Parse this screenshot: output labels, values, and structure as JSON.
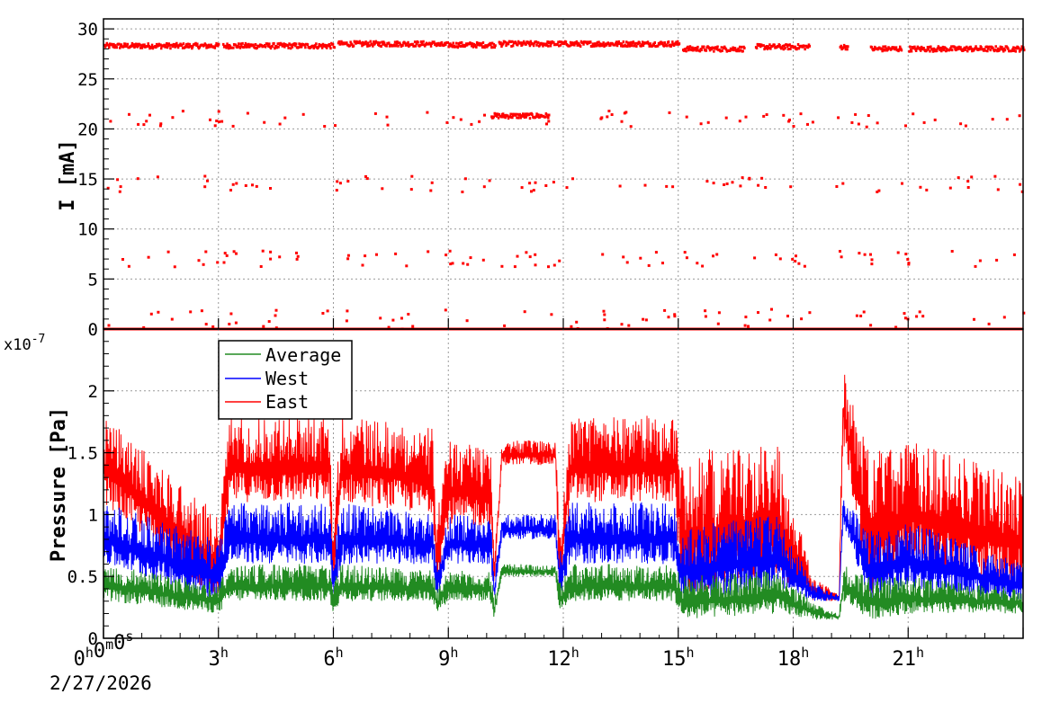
{
  "colors": {
    "current": "#ff0000",
    "average": "#228b22",
    "west": "#0000ff",
    "east": "#ff0000",
    "axes": "#000000",
    "grid": "#9a9a9a"
  },
  "chart_data": [
    {
      "type": "scatter",
      "ylabel": "I [mA]",
      "ylim": [
        0,
        31
      ],
      "yticks": [
        0,
        5,
        10,
        15,
        20,
        25,
        30
      ],
      "xlim_hours": [
        0,
        24
      ],
      "grid": true,
      "current_levels": [
        0,
        7,
        14.5,
        21,
        28.3
      ],
      "series": [
        {
          "color": "#ff0000",
          "segments": [
            {
              "start_h": 0.0,
              "end_h": 3.0,
              "level": 28.3
            },
            {
              "start_h": 3.1,
              "end_h": 6.0,
              "level": 28.3
            },
            {
              "start_h": 6.1,
              "end_h": 8.7,
              "level": 28.5
            },
            {
              "start_h": 8.7,
              "end_h": 10.2,
              "level": 28.4
            },
            {
              "start_h": 10.1,
              "end_h": 11.6,
              "level": 21.3
            },
            {
              "start_h": 10.3,
              "end_h": 15.0,
              "level": 28.5
            },
            {
              "start_h": 15.1,
              "end_h": 16.7,
              "level": 28.0
            },
            {
              "start_h": 17.0,
              "end_h": 18.4,
              "level": 28.2
            },
            {
              "start_h": 19.2,
              "end_h": 19.4,
              "level": 28.2
            },
            {
              "start_h": 20.0,
              "end_h": 20.8,
              "level": 28.0
            },
            {
              "start_h": 21.0,
              "end_h": 24.0,
              "level": 28.0
            }
          ],
          "baseline": 0
        }
      ]
    },
    {
      "type": "line",
      "ylabel": "Pressure [Pa]",
      "y_multiplier": "x10",
      "y_multiplier_exp": "-7",
      "ylim": [
        0,
        2.5
      ],
      "yticks": [
        0,
        0.5,
        1,
        1.5,
        2
      ],
      "ytick_labels": [
        "0",
        "0.5",
        "1",
        "1.5",
        "2"
      ],
      "xlim_hours": [
        0,
        24
      ],
      "xticks_hours": [
        0,
        3,
        6,
        9,
        12,
        15,
        18,
        21
      ],
      "xtick_labels": [
        {
          "main": "0",
          "parts": [
            [
              "0",
              "h"
            ],
            [
              "0",
              "m"
            ],
            [
              "0",
              "s"
            ]
          ]
        },
        {
          "main": "3",
          "sup": "h"
        },
        {
          "main": "6",
          "sup": "h"
        },
        {
          "main": "9",
          "sup": "h"
        },
        {
          "main": "12",
          "sup": "h"
        },
        {
          "main": "15",
          "sup": "h"
        },
        {
          "main": "18",
          "sup": "h"
        },
        {
          "main": "21",
          "sup": "h"
        }
      ],
      "date_label": "2/27/2026",
      "grid": true,
      "legend_placement": "top-left",
      "series": [
        {
          "name": "Average",
          "color": "#228b22",
          "profile": [
            [
              0.0,
              0.3,
              0.6
            ],
            [
              3.0,
              0.2,
              0.45
            ],
            [
              3.3,
              0.3,
              0.6
            ],
            [
              5.9,
              0.3,
              0.6
            ],
            [
              6.0,
              0.2,
              0.45
            ],
            [
              6.2,
              0.3,
              0.6
            ],
            [
              8.6,
              0.3,
              0.55
            ],
            [
              8.7,
              0.2,
              0.4
            ],
            [
              9.0,
              0.3,
              0.55
            ],
            [
              10.1,
              0.3,
              0.55
            ],
            [
              10.2,
              0.15,
              0.35
            ],
            [
              10.4,
              0.5,
              0.6
            ],
            [
              11.8,
              0.5,
              0.6
            ],
            [
              11.9,
              0.2,
              0.45
            ],
            [
              12.2,
              0.3,
              0.6
            ],
            [
              14.9,
              0.3,
              0.6
            ],
            [
              15.1,
              0.15,
              0.5
            ],
            [
              17.6,
              0.2,
              0.55
            ],
            [
              18.5,
              0.15,
              0.3
            ],
            [
              19.2,
              0.15,
              0.2
            ],
            [
              19.3,
              0.3,
              0.6
            ],
            [
              20.0,
              0.15,
              0.5
            ],
            [
              21.0,
              0.2,
              0.5
            ],
            [
              24.0,
              0.2,
              0.4
            ]
          ]
        },
        {
          "name": "West",
          "color": "#0000ff",
          "profile": [
            [
              0.0,
              0.6,
              1.1
            ],
            [
              3.0,
              0.3,
              0.8
            ],
            [
              3.3,
              0.6,
              1.1
            ],
            [
              5.9,
              0.6,
              1.1
            ],
            [
              6.0,
              0.3,
              0.7
            ],
            [
              6.2,
              0.6,
              1.1
            ],
            [
              8.6,
              0.6,
              1.0
            ],
            [
              8.7,
              0.3,
              0.6
            ],
            [
              9.0,
              0.6,
              1.0
            ],
            [
              10.1,
              0.6,
              1.0
            ],
            [
              10.2,
              0.3,
              0.5
            ],
            [
              10.4,
              0.8,
              1.0
            ],
            [
              11.8,
              0.8,
              1.0
            ],
            [
              11.9,
              0.3,
              0.7
            ],
            [
              12.2,
              0.6,
              1.1
            ],
            [
              14.9,
              0.6,
              1.1
            ],
            [
              15.1,
              0.3,
              0.9
            ],
            [
              17.6,
              0.4,
              1.0
            ],
            [
              18.5,
              0.3,
              0.45
            ],
            [
              19.2,
              0.3,
              0.35
            ],
            [
              19.3,
              0.9,
              1.15
            ],
            [
              20.0,
              0.3,
              0.9
            ],
            [
              21.0,
              0.4,
              0.95
            ],
            [
              24.0,
              0.3,
              0.6
            ]
          ]
        },
        {
          "name": "East",
          "color": "#ff0000",
          "profile": [
            [
              0.0,
              1.1,
              1.8
            ],
            [
              3.0,
              0.3,
              1.0
            ],
            [
              3.3,
              1.1,
              1.8
            ],
            [
              5.9,
              1.1,
              1.8
            ],
            [
              6.0,
              0.3,
              0.9
            ],
            [
              6.2,
              1.1,
              1.8
            ],
            [
              8.6,
              1.0,
              1.7
            ],
            [
              8.7,
              0.4,
              1.0
            ],
            [
              9.0,
              0.9,
              1.6
            ],
            [
              10.1,
              0.9,
              1.6
            ],
            [
              10.2,
              0.4,
              0.7
            ],
            [
              10.4,
              1.4,
              1.6
            ],
            [
              11.8,
              1.4,
              1.6
            ],
            [
              11.9,
              0.3,
              0.9
            ],
            [
              12.2,
              1.1,
              1.8
            ],
            [
              14.9,
              1.1,
              1.8
            ],
            [
              15.1,
              0.3,
              1.5
            ],
            [
              17.6,
              0.5,
              1.6
            ],
            [
              18.5,
              0.3,
              0.5
            ],
            [
              19.2,
              0.3,
              0.35
            ],
            [
              19.3,
              1.6,
              2.2
            ],
            [
              20.0,
              0.3,
              1.5
            ],
            [
              21.0,
              0.6,
              1.6
            ],
            [
              24.0,
              0.4,
              1.3
            ]
          ]
        }
      ]
    }
  ]
}
